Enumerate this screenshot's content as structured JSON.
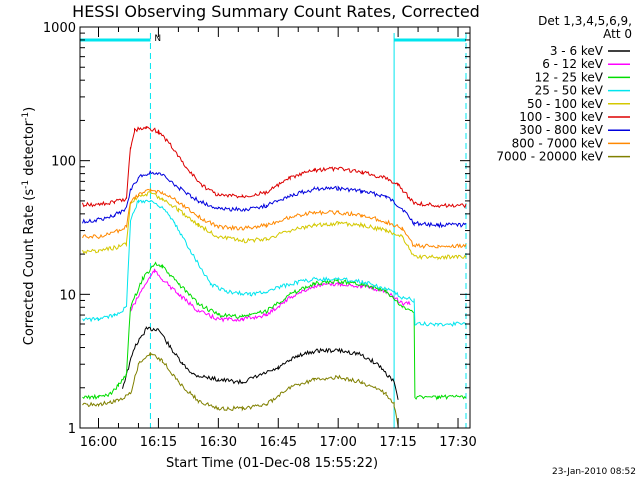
{
  "chart_data": {
    "type": "line",
    "title": "HESSI Observing Summary Count Rates, Corrected",
    "xlabel": "Start Time (01-Dec-08 15:55:22)",
    "ylabel_main": "Corrected Count Rate (s",
    "ylabel_sup1": "-1",
    "ylabel_mid": " detector",
    "ylabel_sup2": "-1",
    "ylabel_end": ")",
    "y_scale": "log",
    "ylim": [
      1,
      1000
    ],
    "xlim": [
      "15:55:22",
      "17:33:00"
    ],
    "x_ticks": [
      "16:00",
      "16:15",
      "16:30",
      "16:45",
      "17:00",
      "17:15",
      "17:30"
    ],
    "y_ticks": [
      "1",
      "10",
      "100",
      "1000"
    ],
    "legend_header": [
      "Det 1,3,4,5,6,9,",
      "Att 0"
    ],
    "legend_position": "right",
    "annotation_flag": "N",
    "timestamp": "23-Jan-2010 08:52",
    "background_color": "#ffffff",
    "markers": {
      "color": "#00e5ee",
      "solid_line_x": "17:14",
      "dashed_lines_x": [
        "16:13",
        "17:32"
      ],
      "bars": [
        {
          "start": "15:55:22",
          "end": "16:13"
        },
        {
          "start": "17:14",
          "end": "17:32"
        }
      ]
    },
    "series": [
      {
        "name": "3 - 6 keV",
        "color": "#000000",
        "points": [
          [
            "16:06",
            2.0
          ],
          [
            "16:09",
            4.0
          ],
          [
            "16:12",
            5.5
          ],
          [
            "16:15",
            5.5
          ],
          [
            "16:18",
            4.0
          ],
          [
            "16:21",
            3.0
          ],
          [
            "16:24",
            2.5
          ],
          [
            "16:30",
            2.3
          ],
          [
            "16:36",
            2.2
          ],
          [
            "16:45",
            2.8
          ],
          [
            "16:50",
            3.5
          ],
          [
            "16:55",
            3.8
          ],
          [
            "17:00",
            3.8
          ],
          [
            "17:05",
            3.6
          ],
          [
            "17:10",
            3.0
          ],
          [
            "17:14",
            2.2
          ],
          [
            "17:15",
            1.6
          ]
        ]
      },
      {
        "name": "6 - 12 keV",
        "color": "#ff00ff",
        "points": [
          [
            "16:08",
            7.5
          ],
          [
            "16:11",
            11
          ],
          [
            "16:14",
            15
          ],
          [
            "16:16",
            13
          ],
          [
            "16:20",
            10
          ],
          [
            "16:25",
            7.5
          ],
          [
            "16:30",
            6.5
          ],
          [
            "16:36",
            6.5
          ],
          [
            "16:42",
            7
          ],
          [
            "16:48",
            9.5
          ],
          [
            "16:54",
            11.5
          ],
          [
            "17:00",
            12
          ],
          [
            "17:06",
            11.5
          ],
          [
            "17:12",
            10.5
          ],
          [
            "17:16",
            8.5
          ],
          [
            "17:18",
            8.5
          ]
        ]
      },
      {
        "name": "12 - 25 keV",
        "color": "#00dd00",
        "points": [
          [
            "15:56",
            1.7
          ],
          [
            "16:00",
            1.7
          ],
          [
            "16:03",
            1.8
          ],
          [
            "16:05",
            2.1
          ],
          [
            "16:07",
            2.5
          ],
          [
            "16:08",
            8.0
          ],
          [
            "16:11",
            13
          ],
          [
            "16:14",
            17
          ],
          [
            "16:16",
            16
          ],
          [
            "16:20",
            12
          ],
          [
            "16:25",
            8.5
          ],
          [
            "16:30",
            7.0
          ],
          [
            "16:36",
            6.8
          ],
          [
            "16:42",
            7.5
          ],
          [
            "16:48",
            10
          ],
          [
            "16:54",
            12
          ],
          [
            "17:00",
            12.5
          ],
          [
            "17:06",
            12
          ],
          [
            "17:12",
            10.5
          ],
          [
            "17:16",
            8.0
          ],
          [
            "17:19",
            7.5
          ],
          [
            "17:19.2",
            1.7
          ],
          [
            "17:25",
            1.7
          ],
          [
            "17:32",
            1.7
          ]
        ]
      },
      {
        "name": "25 - 50 keV",
        "color": "#00e5ee",
        "points": [
          [
            "15:56",
            6.5
          ],
          [
            "16:00",
            6.5
          ],
          [
            "16:04",
            7.0
          ],
          [
            "16:07",
            8.0
          ],
          [
            "16:08",
            36
          ],
          [
            "16:10",
            50
          ],
          [
            "16:13",
            50
          ],
          [
            "16:16",
            45
          ],
          [
            "16:19",
            34
          ],
          [
            "16:22",
            24
          ],
          [
            "16:25",
            17
          ],
          [
            "16:28",
            12
          ],
          [
            "16:32",
            10.5
          ],
          [
            "16:38",
            10
          ],
          [
            "16:42",
            10.5
          ],
          [
            "16:48",
            12
          ],
          [
            "16:54",
            13
          ],
          [
            "17:00",
            13
          ],
          [
            "17:06",
            12.5
          ],
          [
            "17:12",
            11
          ],
          [
            "17:16",
            9.5
          ],
          [
            "17:19",
            9.0
          ],
          [
            "17:19.2",
            6.0
          ],
          [
            "17:25",
            6.0
          ],
          [
            "17:32",
            6.0
          ]
        ]
      },
      {
        "name": "50 - 100 keV",
        "color": "#d4c800",
        "points": [
          [
            "15:56",
            21
          ],
          [
            "16:00",
            21
          ],
          [
            "16:03",
            22
          ],
          [
            "16:06",
            23
          ],
          [
            "16:07",
            24
          ],
          [
            "16:08",
            48
          ],
          [
            "16:10",
            55
          ],
          [
            "16:13",
            57
          ],
          [
            "16:16",
            52
          ],
          [
            "16:20",
            43
          ],
          [
            "16:25",
            33
          ],
          [
            "16:30",
            27
          ],
          [
            "16:36",
            25
          ],
          [
            "16:42",
            26
          ],
          [
            "16:48",
            30
          ],
          [
            "16:54",
            33
          ],
          [
            "17:00",
            34
          ],
          [
            "17:06",
            33
          ],
          [
            "17:12",
            30
          ],
          [
            "17:16",
            27
          ],
          [
            "17:19",
            19
          ],
          [
            "17:25",
            19
          ],
          [
            "17:32",
            19
          ]
        ]
      },
      {
        "name": "100 - 300 keV",
        "color": "#dd0000",
        "points": [
          [
            "15:56",
            47
          ],
          [
            "16:00",
            47
          ],
          [
            "16:04",
            49
          ],
          [
            "16:07",
            52
          ],
          [
            "16:08",
            125
          ],
          [
            "16:09",
            170
          ],
          [
            "16:12",
            178
          ],
          [
            "16:15",
            165
          ],
          [
            "16:18",
            132
          ],
          [
            "16:22",
            88
          ],
          [
            "16:26",
            65
          ],
          [
            "16:30",
            55
          ],
          [
            "16:36",
            54
          ],
          [
            "16:42",
            58
          ],
          [
            "16:48",
            74
          ],
          [
            "16:54",
            85
          ],
          [
            "17:00",
            87
          ],
          [
            "17:06",
            82
          ],
          [
            "17:12",
            74
          ],
          [
            "17:15",
            66
          ],
          [
            "17:19",
            48
          ],
          [
            "17:25",
            46
          ],
          [
            "17:32",
            46
          ]
        ]
      },
      {
        "name": "300 - 800 keV",
        "color": "#0000dd",
        "points": [
          [
            "15:56",
            35
          ],
          [
            "16:00",
            36
          ],
          [
            "16:04",
            39
          ],
          [
            "16:07",
            44
          ],
          [
            "16:08",
            60
          ],
          [
            "16:10",
            75
          ],
          [
            "16:13",
            82
          ],
          [
            "16:16",
            78
          ],
          [
            "16:20",
            63
          ],
          [
            "16:25",
            50
          ],
          [
            "16:30",
            44
          ],
          [
            "16:36",
            43
          ],
          [
            "16:42",
            46
          ],
          [
            "16:48",
            55
          ],
          [
            "16:54",
            61
          ],
          [
            "17:00",
            62
          ],
          [
            "17:06",
            59
          ],
          [
            "17:12",
            54
          ],
          [
            "17:16",
            44
          ],
          [
            "17:19",
            34
          ],
          [
            "17:25",
            33
          ],
          [
            "17:32",
            33
          ]
        ]
      },
      {
        "name": "800 - 7000 keV",
        "color": "#ff8800",
        "points": [
          [
            "15:56",
            27
          ],
          [
            "16:00",
            27
          ],
          [
            "16:04",
            29
          ],
          [
            "16:07",
            32
          ],
          [
            "16:08",
            50
          ],
          [
            "16:10",
            56
          ],
          [
            "16:13",
            60
          ],
          [
            "16:16",
            58
          ],
          [
            "16:20",
            49
          ],
          [
            "16:25",
            38
          ],
          [
            "16:30",
            32
          ],
          [
            "16:36",
            31
          ],
          [
            "16:42",
            33
          ],
          [
            "16:48",
            38
          ],
          [
            "16:54",
            41
          ],
          [
            "17:00",
            41
          ],
          [
            "17:06",
            39
          ],
          [
            "17:12",
            35
          ],
          [
            "17:16",
            31
          ],
          [
            "17:19",
            23
          ],
          [
            "17:25",
            23
          ],
          [
            "17:32",
            23
          ]
        ]
      },
      {
        "name": "7000 - 20000 keV",
        "color": "#808000",
        "points": [
          [
            "15:56",
            1.5
          ],
          [
            "16:00",
            1.5
          ],
          [
            "16:05",
            1.6
          ],
          [
            "16:08",
            1.8
          ],
          [
            "16:10",
            3.0
          ],
          [
            "16:13",
            3.6
          ],
          [
            "16:16",
            3.2
          ],
          [
            "16:20",
            2.2
          ],
          [
            "16:25",
            1.6
          ],
          [
            "16:30",
            1.4
          ],
          [
            "16:36",
            1.4
          ],
          [
            "16:42",
            1.5
          ],
          [
            "16:48",
            2.0
          ],
          [
            "16:54",
            2.3
          ],
          [
            "17:00",
            2.4
          ],
          [
            "17:06",
            2.2
          ],
          [
            "17:12",
            1.8
          ],
          [
            "17:14",
            1.5
          ],
          [
            "17:15",
            1.0
          ]
        ]
      }
    ]
  }
}
